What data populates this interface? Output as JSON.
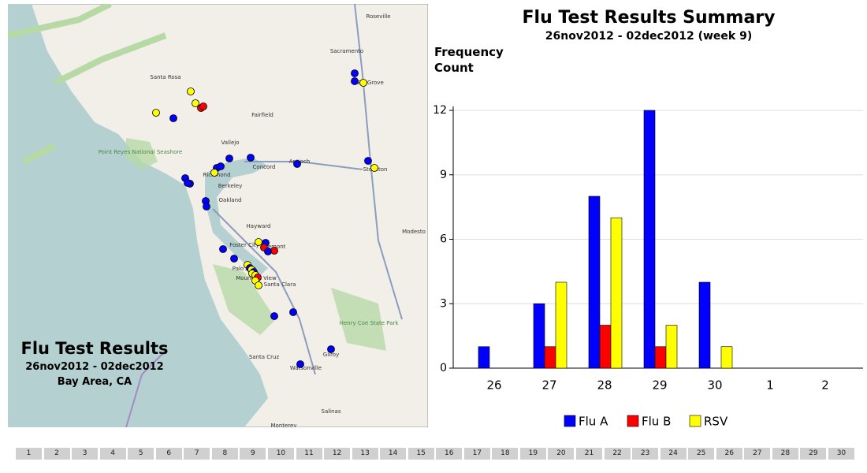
{
  "chart_data": {
    "type": "bar",
    "title": "Flu Test Results Summary",
    "subtitle": "26nov2012 - 02dec2012 (week 9)",
    "y_label": "Frequency Count",
    "categories": [
      "26",
      "27",
      "28",
      "29",
      "30",
      "1",
      "2"
    ],
    "series": [
      {
        "name": "Flu A",
        "color": "#0000ff",
        "values": [
          1,
          3,
          8,
          12,
          4,
          0,
          0
        ]
      },
      {
        "name": "Flu B",
        "color": "#ff0000",
        "values": [
          0,
          1,
          2,
          1,
          0,
          0,
          0
        ]
      },
      {
        "name": "RSV",
        "color": "#ffff00",
        "values": [
          0,
          4,
          7,
          2,
          1,
          0,
          0
        ]
      }
    ],
    "ylim": [
      0,
      12
    ],
    "yticks": [
      0,
      3,
      6,
      9,
      12
    ],
    "grid": true,
    "legend": "bottom"
  },
  "map": {
    "title": "Flu Test Results",
    "dates": "26nov2012 - 02dec2012",
    "region": "Bay Area, CA",
    "places": [
      "Roseville",
      "Sacramento",
      "Elk Grove",
      "Santa Rosa",
      "Fairfield",
      "Vallejo",
      "Concord",
      "Antioch",
      "Stockton",
      "Richmond",
      "Berkeley",
      "Oakland",
      "Hayward",
      "Modesto",
      "Foster City",
      "Fremont",
      "Palo Alto",
      "Mountain View",
      "Santa Clara",
      "Point Reyes National Seashore",
      "Henry Coe State Park",
      "Santa Cruz",
      "Watsonville",
      "Gilroy",
      "Salinas",
      "Monterey"
    ]
  },
  "pager": {
    "pages": [
      1,
      2,
      3,
      4,
      5,
      6,
      7,
      8,
      9,
      10,
      11,
      12,
      13,
      14,
      15,
      16,
      17,
      18,
      19,
      20,
      21,
      22,
      23,
      24,
      25,
      26,
      27,
      28,
      29,
      30
    ]
  }
}
